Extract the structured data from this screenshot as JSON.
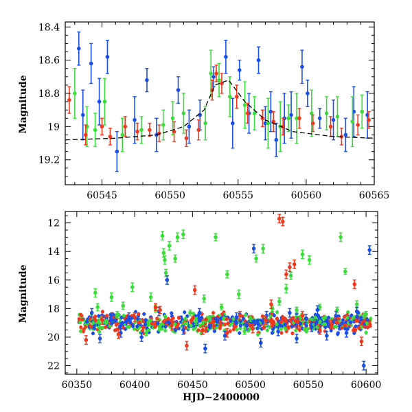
{
  "colors": {
    "blue": "#1a4fe6",
    "green": "#3ddc3d",
    "red": "#f03a20",
    "model": "#000000",
    "axes": "#000000"
  },
  "chart_data": [
    {
      "type": "scatter",
      "title": "",
      "xlabel": "",
      "ylabel": "Magnitude",
      "xlim": [
        60542.3,
        60565.0
      ],
      "ylim": [
        19.35,
        18.37
      ],
      "y_inverted": true,
      "grid": false,
      "legend": "none",
      "xticks": [
        "60545",
        "60550",
        "60555",
        "60560",
        "60565"
      ],
      "yticks": [
        "18.4",
        "18.6",
        "18.8",
        "19",
        "19.2"
      ],
      "xticks_values": [
        60545,
        60550,
        60555,
        60560,
        60565
      ],
      "yticks_values": [
        18.4,
        18.6,
        18.8,
        19.0,
        19.2
      ],
      "model_curve": {
        "style": "dashed",
        "x": [
          60542.3,
          60546,
          60549,
          60551,
          60552.5,
          60553.3,
          60554.3,
          60555.5,
          60557,
          60559,
          60562,
          60565
        ],
        "y": [
          19.08,
          19.07,
          19.05,
          19.0,
          18.9,
          18.75,
          18.72,
          18.85,
          18.96,
          19.03,
          19.06,
          19.07
        ]
      },
      "series": [
        {
          "color": "blue",
          "x": [
            60543.3,
            60543.6,
            60544.2,
            60544.8,
            60545.4,
            60546.1,
            60547.4,
            60548.3,
            60549.0,
            60550.6,
            60551.4,
            60552.2,
            60553.2,
            60554.1,
            60554.6,
            60555.1,
            60555.8,
            60556.5,
            60557.0,
            60557.4,
            60557.8,
            60558.4,
            60558.9,
            60559.7,
            60560.1,
            60561.0,
            60562.0,
            60562.9,
            60563.5,
            60564.5
          ],
          "y": [
            18.53,
            18.93,
            18.62,
            18.85,
            18.58,
            19.15,
            18.96,
            18.72,
            19.05,
            18.78,
            19.0,
            18.93,
            18.7,
            18.58,
            18.98,
            18.66,
            18.92,
            18.6,
            18.98,
            18.91,
            19.08,
            18.95,
            18.93,
            18.64,
            18.8,
            18.95,
            18.96,
            19.05,
            18.91,
            18.93
          ],
          "err": [
            0.1,
            0.15,
            0.12,
            0.14,
            0.1,
            0.12,
            0.14,
            0.07,
            0.1,
            0.08,
            0.1,
            0.09,
            0.06,
            0.1,
            0.15,
            0.06,
            0.12,
            0.08,
            0.1,
            0.12,
            0.1,
            0.15,
            0.14,
            0.1,
            0.08,
            0.06,
            0.12,
            0.1,
            0.15,
            0.14
          ]
        },
        {
          "color": "green",
          "x": [
            60543.0,
            60543.9,
            60544.5,
            60545.2,
            60546.5,
            60547.9,
            60549.5,
            60550.2,
            60551.0,
            60552.6,
            60553.0,
            60553.6,
            60554.4,
            60555.5,
            60556.2,
            60557.2,
            60558.1,
            60558.7,
            60559.3,
            60560.4,
            60561.5,
            60562.3,
            60563.4,
            60564.1
          ],
          "y": [
            18.8,
            19.0,
            19.02,
            18.85,
            19.05,
            19.02,
            18.99,
            18.95,
            18.92,
            18.98,
            18.68,
            18.72,
            18.82,
            18.87,
            18.92,
            18.98,
            19.0,
            18.95,
            18.95,
            18.92,
            18.92,
            18.94,
            18.97,
            18.91
          ],
          "err": [
            0.15,
            0.12,
            0.1,
            0.14,
            0.1,
            0.08,
            0.09,
            0.1,
            0.12,
            0.1,
            0.14,
            0.1,
            0.12,
            0.14,
            0.1,
            0.15,
            0.15,
            0.08,
            0.15,
            0.14,
            0.1,
            0.12,
            0.15,
            0.1
          ]
        },
        {
          "color": "red",
          "x": [
            60542.6,
            60543.8,
            60545.0,
            60545.6,
            60546.7,
            60547.6,
            60548.5,
            60549.2,
            60550.3,
            60551.2,
            60552.1,
            60553.1,
            60553.4,
            60553.8,
            60554.9,
            60555.7,
            60556.8,
            60557.6,
            60558.3,
            60559.5,
            60560.5,
            60561.8,
            60562.6,
            60563.8,
            60564.6
          ],
          "y": [
            18.84,
            19.05,
            19.0,
            19.06,
            19.0,
            19.03,
            19.02,
            19.04,
            19.03,
            19.07,
            19.02,
            18.78,
            18.68,
            18.74,
            18.82,
            18.92,
            18.95,
            18.97,
            19.0,
            18.95,
            18.98,
            19.0,
            19.06,
            18.99,
            18.96
          ],
          "err": [
            0.08,
            0.06,
            0.05,
            0.05,
            0.06,
            0.05,
            0.04,
            0.05,
            0.06,
            0.05,
            0.06,
            0.06,
            0.05,
            0.06,
            0.07,
            0.06,
            0.05,
            0.06,
            0.05,
            0.06,
            0.05,
            0.06,
            0.05,
            0.06,
            0.05
          ]
        }
      ]
    },
    {
      "type": "scatter",
      "title": "",
      "xlabel": "HJD−2400000",
      "ylabel": "Magnitude",
      "xlim": [
        60340,
        60610
      ],
      "ylim": [
        22.6,
        11.2
      ],
      "y_inverted": true,
      "grid": false,
      "legend": "none",
      "xticks": [
        "60350",
        "60400",
        "60450",
        "60500",
        "60550",
        "60600"
      ],
      "yticks": [
        "12",
        "14",
        "16",
        "18",
        "20",
        "22"
      ],
      "xticks_values": [
        60350,
        60400,
        60450,
        60500,
        60550,
        60600
      ],
      "yticks_values": [
        12,
        14,
        16,
        18,
        20,
        22
      ],
      "band": {
        "x_start": 60352,
        "x_end": 60605,
        "center": 19.0,
        "spread": 0.6
      },
      "series": [
        {
          "color": "green",
          "x": [
            60366,
            60368,
            60380,
            60385,
            60390,
            60398,
            60410,
            60414,
            60418,
            60424,
            60425,
            60426,
            60427,
            60428,
            60430,
            60435,
            60437,
            60442,
            60448,
            60453,
            60460,
            60465,
            60470,
            60475,
            60480,
            60490,
            60495,
            60500,
            60505,
            60511,
            60519,
            60525,
            60531,
            60535,
            60540,
            60545,
            60551,
            60560,
            60575,
            60578,
            60582,
            60592,
            60598,
            60600
          ],
          "y": [
            16.9,
            17.9,
            17.2,
            18.4,
            17.8,
            16.5,
            19.7,
            17.2,
            18.0,
            12.9,
            14.1,
            14.6,
            15.5,
            16.0,
            13.6,
            14.5,
            13.0,
            12.8,
            18.3,
            18.9,
            17.3,
            18.7,
            13.0,
            17.9,
            15.6,
            17.0,
            19.6,
            18.7,
            14.5,
            13.8,
            18.0,
            17.5,
            16.6,
            15.7,
            18.1,
            14.2,
            14.6,
            17.9,
            18.1,
            13.0,
            15.4,
            17.7,
            18.5,
            18.4
          ],
          "err": [
            0.3,
            0.25,
            0.3,
            0.2,
            0.25,
            0.3,
            0.2,
            0.3,
            0.25,
            0.3,
            0.3,
            0.3,
            0.25,
            0.3,
            0.3,
            0.25,
            0.3,
            0.3,
            0.2,
            0.2,
            0.25,
            0.2,
            0.25,
            0.2,
            0.25,
            0.3,
            0.2,
            0.2,
            0.25,
            0.3,
            0.2,
            0.25,
            0.3,
            0.25,
            0.2,
            0.3,
            0.3,
            0.2,
            0.2,
            0.3,
            0.2,
            0.25,
            0.2,
            0.2
          ]
        },
        {
          "color": "blue",
          "x": [
            60363,
            60370,
            60380,
            60388,
            60395,
            60406,
            60421,
            60428,
            60442,
            60456,
            60461,
            60471,
            60478,
            60488,
            60497,
            60503,
            60509,
            60514,
            60524,
            60534,
            60540,
            60548,
            60553,
            60558,
            60566,
            60574,
            60583,
            60592,
            60598,
            60603
          ],
          "y": [
            18.3,
            20.1,
            18.8,
            19.7,
            18.6,
            20.0,
            18.2,
            16.0,
            19.5,
            18.3,
            20.8,
            18.9,
            19.9,
            18.6,
            19.2,
            13.8,
            20.4,
            18.5,
            19.6,
            18.3,
            20.1,
            18.7,
            19.3,
            18.1,
            19.9,
            18.5,
            19.7,
            18.2,
            22.0,
            13.9
          ],
          "err": [
            0.3,
            0.3,
            0.3,
            0.3,
            0.3,
            0.3,
            0.3,
            0.3,
            0.3,
            0.3,
            0.3,
            0.3,
            0.3,
            0.3,
            0.3,
            0.3,
            0.3,
            0.3,
            0.3,
            0.3,
            0.3,
            0.3,
            0.3,
            0.3,
            0.3,
            0.3,
            0.3,
            0.3,
            0.3,
            0.3
          ]
        },
        {
          "color": "red",
          "x": [
            60358,
            60372,
            60386,
            60400,
            60418,
            60422,
            60432,
            60445,
            60452,
            60459,
            60468,
            60480,
            60491,
            60502,
            60513,
            60518,
            60525,
            60528,
            60531,
            60534,
            60538,
            60541,
            60545,
            60560,
            60570,
            60590,
            60596
          ],
          "y": [
            20.2,
            18.8,
            19.8,
            18.6,
            17.9,
            18.1,
            19.2,
            20.6,
            16.7,
            19.5,
            18.9,
            19.7,
            18.5,
            19.4,
            18.8,
            17.7,
            11.7,
            11.9,
            15.6,
            15.1,
            14.9,
            18.9,
            18.5,
            19.5,
            19.1,
            16.3,
            20.3
          ],
          "err": [
            0.3,
            0.3,
            0.3,
            0.3,
            0.25,
            0.25,
            0.3,
            0.3,
            0.3,
            0.3,
            0.3,
            0.3,
            0.3,
            0.3,
            0.3,
            0.3,
            0.3,
            0.3,
            0.3,
            0.3,
            0.3,
            0.3,
            0.3,
            0.3,
            0.3,
            0.3,
            0.3
          ]
        }
      ]
    }
  ]
}
